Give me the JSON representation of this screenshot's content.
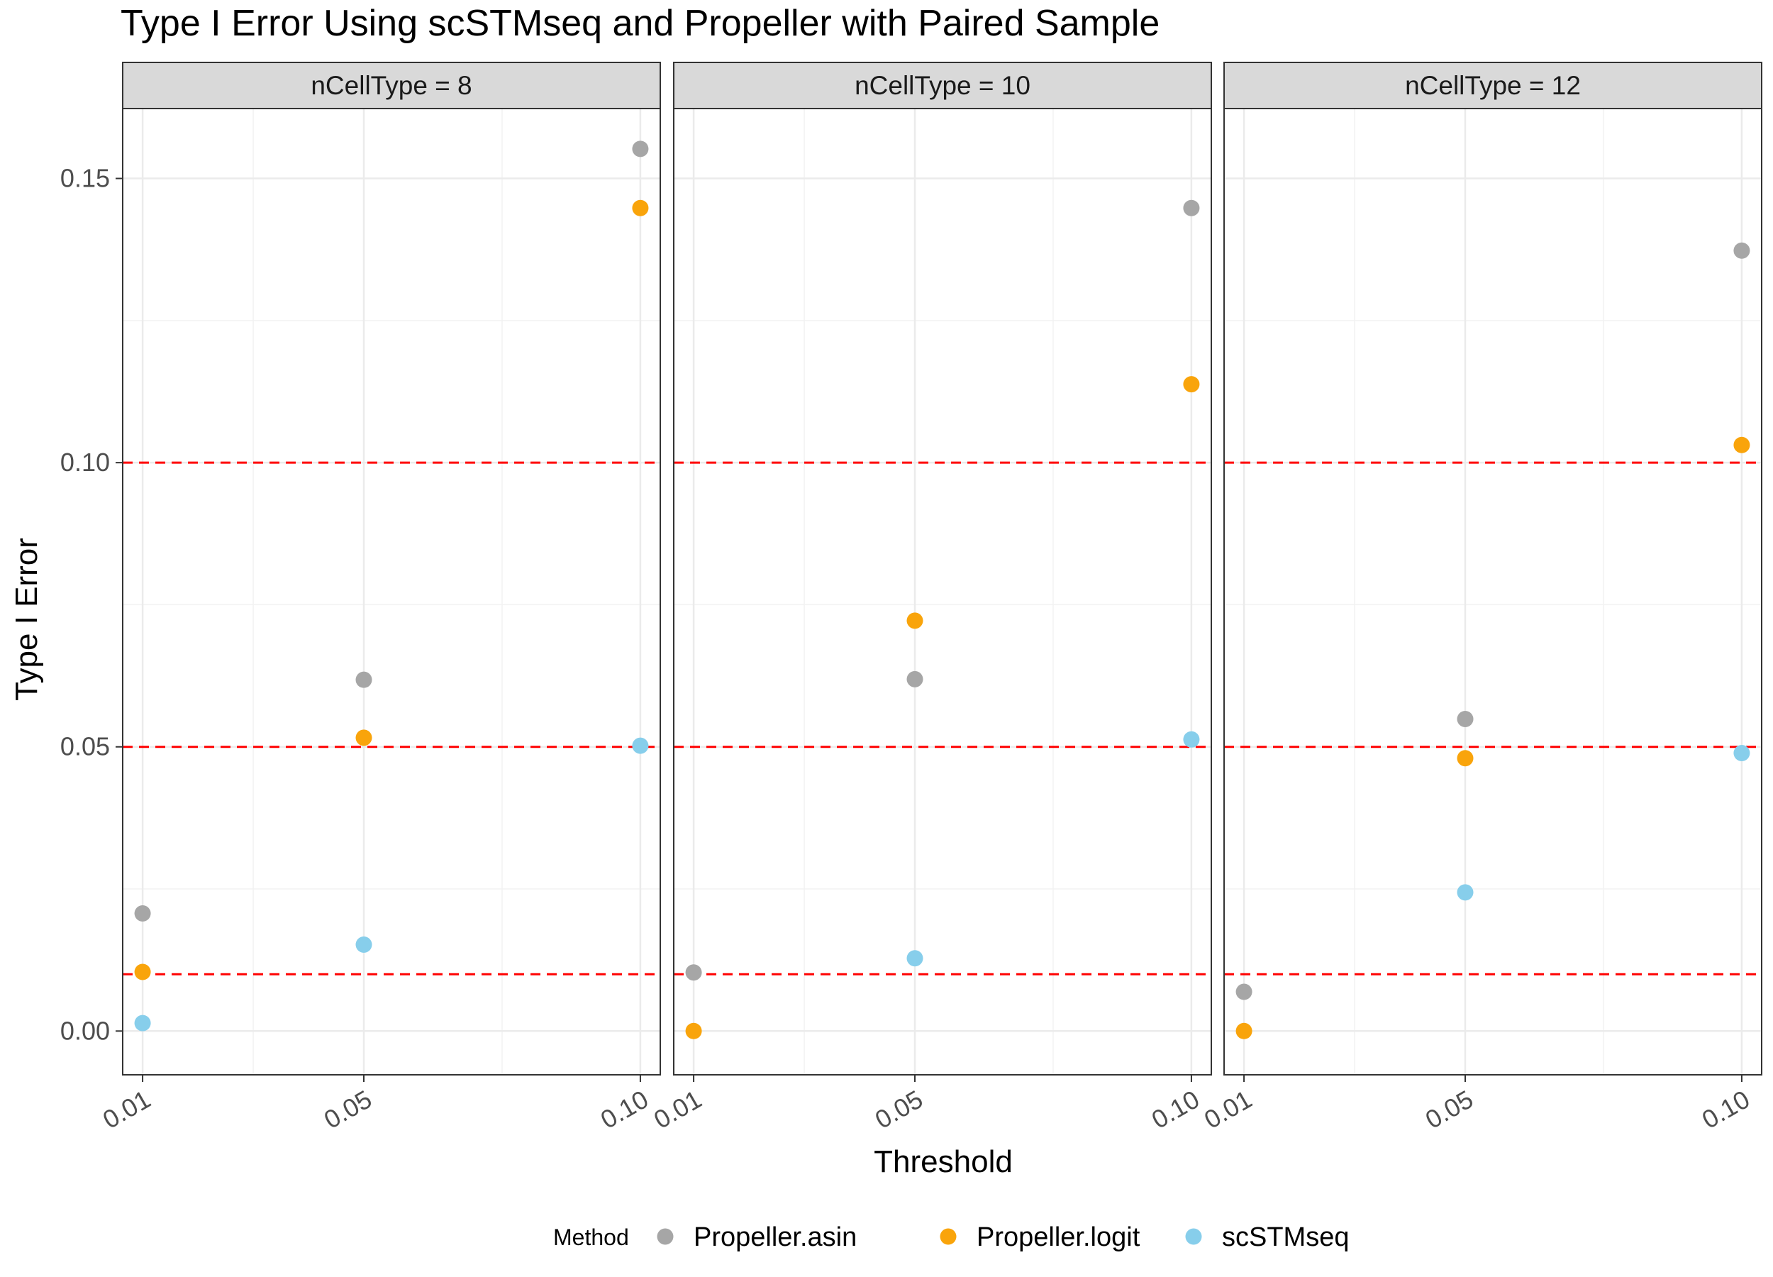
{
  "chart_data": {
    "type": "scatter",
    "title": "Type I Error Using scSTMseq and Propeller with Paired Sample",
    "xlabel": "Threshold",
    "ylabel": "Type I Error",
    "x_ticks": [
      "0.01",
      "0.05",
      "0.10"
    ],
    "x_values": [
      0.01,
      0.05,
      0.1
    ],
    "xlim": [
      0.0064,
      0.1036
    ],
    "y_ticks": [
      "0.00",
      "0.05",
      "0.10",
      "0.15"
    ],
    "y_tick_values": [
      0.0,
      0.05,
      0.1,
      0.15
    ],
    "ylim": [
      -0.0077,
      0.1623
    ],
    "grid": true,
    "reference_lines": {
      "values": [
        0.01,
        0.05,
        0.1
      ],
      "color": "#ff0000",
      "style": "dashed"
    },
    "legend": {
      "title": "Method",
      "position": "bottom",
      "entries": [
        {
          "name": "Propeller.asin",
          "color": "#a6a6a6"
        },
        {
          "name": "Propeller.logit",
          "color": "#f9a40b"
        },
        {
          "name": "scSTMseq",
          "color": "#87ceeb"
        }
      ]
    },
    "panels": [
      {
        "label": "nCellType = 8",
        "series": [
          {
            "name": "Propeller.asin",
            "color": "#a6a6a6",
            "x": [
              0.01,
              0.05,
              0.1
            ],
            "y": [
              0.0207,
              0.0618,
              0.1552
            ]
          },
          {
            "name": "Propeller.logit",
            "color": "#f9a40b",
            "x": [
              0.01,
              0.05,
              0.1
            ],
            "y": [
              0.0104,
              0.0516,
              0.1448
            ]
          },
          {
            "name": "scSTMseq",
            "color": "#87ceeb",
            "x": [
              0.01,
              0.05,
              0.1
            ],
            "y": [
              0.0014,
              0.0152,
              0.0502
            ]
          }
        ]
      },
      {
        "label": "nCellType = 10",
        "series": [
          {
            "name": "Propeller.asin",
            "color": "#a6a6a6",
            "x": [
              0.01,
              0.05,
              0.1
            ],
            "y": [
              0.0103,
              0.0619,
              0.1448
            ]
          },
          {
            "name": "Propeller.logit",
            "color": "#f9a40b",
            "x": [
              0.01,
              0.05,
              0.1
            ],
            "y": [
              0.0,
              0.0722,
              0.1138
            ]
          },
          {
            "name": "scSTMseq",
            "color": "#87ceeb",
            "x": [
              0.01,
              0.05,
              0.1
            ],
            "y": [
              null,
              0.0128,
              0.0513
            ]
          }
        ]
      },
      {
        "label": "nCellType = 12",
        "series": [
          {
            "name": "Propeller.asin",
            "color": "#a6a6a6",
            "x": [
              0.01,
              0.05,
              0.1
            ],
            "y": [
              0.0069,
              0.0549,
              0.1373
            ]
          },
          {
            "name": "Propeller.logit",
            "color": "#f9a40b",
            "x": [
              0.01,
              0.05,
              0.1
            ],
            "y": [
              0.0,
              0.048,
              0.1031
            ]
          },
          {
            "name": "scSTMseq",
            "color": "#87ceeb",
            "x": [
              0.01,
              0.05,
              0.1
            ],
            "y": [
              null,
              0.0244,
              0.0489
            ]
          }
        ]
      }
    ]
  }
}
